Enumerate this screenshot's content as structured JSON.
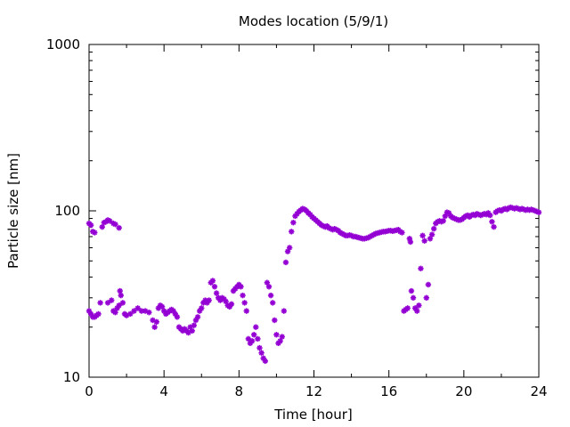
{
  "chart_data": {
    "type": "scatter",
    "title": "Modes location (5/9/1)",
    "xlabel": "Time [hour]",
    "ylabel": "Particle size [nm]",
    "xlim": [
      0,
      24
    ],
    "ylim": [
      10,
      1000
    ],
    "yscale": "log",
    "grid": false,
    "legend": "none",
    "marker": "asterisk",
    "color": "#9400d3",
    "x_ticks": [
      0,
      4,
      8,
      12,
      16,
      20,
      24
    ],
    "x_tick_labels": [
      "0",
      "4",
      "8",
      "12",
      "16",
      "20",
      "24"
    ],
    "y_ticks": [
      10,
      100,
      1000
    ],
    "y_tick_labels": [
      "10",
      "100",
      "1000"
    ],
    "series": [
      {
        "points": [
          [
            0.0,
            25
          ],
          [
            0.1,
            24
          ],
          [
            0.2,
            23
          ],
          [
            0.3,
            23
          ],
          [
            0.4,
            23.5
          ],
          [
            0.5,
            24
          ],
          [
            0.6,
            28
          ],
          [
            1.0,
            28
          ],
          [
            1.2,
            29
          ],
          [
            1.3,
            25
          ],
          [
            1.4,
            24.5
          ],
          [
            1.5,
            26
          ],
          [
            1.6,
            27
          ],
          [
            1.65,
            33
          ],
          [
            1.7,
            31
          ],
          [
            1.8,
            28
          ],
          [
            1.9,
            24
          ],
          [
            2.0,
            23.5
          ],
          [
            2.2,
            24
          ],
          [
            2.4,
            25
          ],
          [
            2.6,
            26
          ],
          [
            2.8,
            25
          ],
          [
            3.0,
            25
          ],
          [
            3.2,
            24.5
          ],
          [
            3.4,
            22
          ],
          [
            3.5,
            20
          ],
          [
            3.6,
            21.5
          ],
          [
            3.7,
            26
          ],
          [
            3.8,
            27
          ],
          [
            3.9,
            26.5
          ],
          [
            4.0,
            25
          ],
          [
            4.1,
            24
          ],
          [
            4.2,
            24.5
          ],
          [
            4.3,
            25
          ],
          [
            4.4,
            25.5
          ],
          [
            4.5,
            25
          ],
          [
            4.6,
            24
          ],
          [
            4.7,
            23
          ],
          [
            4.8,
            20
          ],
          [
            4.9,
            19.5
          ],
          [
            5.0,
            19
          ],
          [
            5.1,
            19.5
          ],
          [
            5.2,
            19
          ],
          [
            5.3,
            18.5
          ],
          [
            5.4,
            20
          ],
          [
            5.5,
            19
          ],
          [
            5.6,
            20.5
          ],
          [
            5.7,
            22
          ],
          [
            5.8,
            23
          ],
          [
            5.9,
            25
          ],
          [
            6.0,
            26
          ],
          [
            6.1,
            28
          ],
          [
            6.2,
            29
          ],
          [
            6.3,
            28
          ],
          [
            6.4,
            29
          ],
          [
            6.5,
            37
          ],
          [
            6.6,
            38
          ],
          [
            6.7,
            35
          ],
          [
            6.8,
            32
          ],
          [
            6.9,
            30
          ],
          [
            7.0,
            29
          ],
          [
            7.1,
            30
          ],
          [
            7.2,
            29.5
          ],
          [
            7.3,
            28.5
          ],
          [
            7.4,
            27
          ],
          [
            7.5,
            26.5
          ],
          [
            7.6,
            27.5
          ],
          [
            7.7,
            33
          ],
          [
            7.8,
            34
          ],
          [
            7.9,
            35
          ],
          [
            8.0,
            36
          ],
          [
            8.1,
            35
          ],
          [
            8.2,
            31
          ],
          [
            8.3,
            28
          ],
          [
            8.4,
            25
          ],
          [
            8.5,
            17
          ],
          [
            8.6,
            16
          ],
          [
            8.7,
            16.5
          ],
          [
            8.8,
            18
          ],
          [
            8.9,
            20
          ],
          [
            9.0,
            17
          ],
          [
            9.1,
            15
          ],
          [
            9.2,
            14
          ],
          [
            9.3,
            13
          ],
          [
            9.4,
            12.5
          ],
          [
            9.5,
            37
          ],
          [
            9.6,
            35
          ],
          [
            9.7,
            31
          ],
          [
            9.8,
            28
          ],
          [
            9.9,
            22
          ],
          [
            10.0,
            18
          ],
          [
            10.1,
            16
          ],
          [
            10.2,
            16.5
          ],
          [
            10.3,
            17.5
          ],
          [
            10.4,
            25
          ],
          [
            10.5,
            49
          ],
          [
            10.6,
            57
          ],
          [
            10.7,
            60
          ],
          [
            10.8,
            75
          ],
          [
            10.9,
            85
          ],
          [
            11.0,
            93
          ],
          [
            11.1,
            96
          ],
          [
            11.2,
            99
          ],
          [
            11.3,
            101
          ],
          [
            11.4,
            103
          ],
          [
            11.5,
            102
          ],
          [
            11.6,
            100
          ],
          [
            11.7,
            97
          ],
          [
            11.8,
            95
          ],
          [
            11.9,
            92
          ],
          [
            12.0,
            90
          ],
          [
            12.1,
            88
          ],
          [
            12.2,
            86
          ],
          [
            12.3,
            84
          ],
          [
            12.4,
            82
          ],
          [
            12.5,
            81
          ],
          [
            12.6,
            80
          ],
          [
            12.7,
            81
          ],
          [
            12.8,
            79
          ],
          [
            12.9,
            78
          ],
          [
            13.0,
            77
          ],
          [
            13.1,
            78
          ],
          [
            13.2,
            77
          ],
          [
            13.3,
            76
          ],
          [
            13.4,
            74
          ],
          [
            13.5,
            73
          ],
          [
            13.6,
            72
          ],
          [
            13.7,
            71
          ],
          [
            13.8,
            71
          ],
          [
            13.9,
            71.5
          ],
          [
            14.0,
            71
          ],
          [
            14.1,
            70
          ],
          [
            14.2,
            70
          ],
          [
            14.3,
            69.5
          ],
          [
            14.4,
            69
          ],
          [
            14.5,
            68.5
          ],
          [
            14.6,
            68
          ],
          [
            14.7,
            68
          ],
          [
            14.8,
            68.5
          ],
          [
            14.9,
            69
          ],
          [
            15.0,
            70
          ],
          [
            15.1,
            71
          ],
          [
            15.2,
            72
          ],
          [
            15.3,
            73
          ],
          [
            15.4,
            73.5
          ],
          [
            15.5,
            74
          ],
          [
            15.6,
            74.5
          ],
          [
            15.7,
            75
          ],
          [
            15.8,
            75
          ],
          [
            15.9,
            75.5
          ],
          [
            16.0,
            76
          ],
          [
            16.1,
            76
          ],
          [
            16.2,
            75.5
          ],
          [
            16.3,
            76
          ],
          [
            16.4,
            76.5
          ],
          [
            16.5,
            77
          ],
          [
            16.6,
            75
          ],
          [
            16.7,
            74
          ],
          [
            16.8,
            25
          ],
          [
            16.9,
            25.5
          ],
          [
            17.0,
            26
          ],
          [
            17.1,
            68
          ],
          [
            17.15,
            65
          ],
          [
            17.2,
            33
          ],
          [
            17.3,
            30
          ],
          [
            17.4,
            26
          ],
          [
            17.5,
            25
          ],
          [
            17.6,
            27
          ],
          [
            17.7,
            45
          ],
          [
            17.8,
            71
          ],
          [
            17.9,
            66
          ],
          [
            18.0,
            30
          ],
          [
            18.1,
            36
          ],
          [
            18.2,
            68
          ],
          [
            18.3,
            72
          ],
          [
            18.4,
            78
          ],
          [
            18.5,
            84
          ],
          [
            18.6,
            86
          ],
          [
            18.7,
            87
          ],
          [
            18.8,
            86
          ],
          [
            18.9,
            87
          ],
          [
            19.0,
            93
          ],
          [
            19.1,
            98
          ],
          [
            19.2,
            97
          ],
          [
            19.3,
            93
          ],
          [
            19.4,
            91
          ],
          [
            19.5,
            90
          ],
          [
            19.6,
            89
          ],
          [
            19.7,
            88
          ],
          [
            19.8,
            88
          ],
          [
            19.9,
            89
          ],
          [
            20.0,
            91
          ],
          [
            20.1,
            93
          ],
          [
            20.2,
            94
          ],
          [
            20.3,
            92
          ],
          [
            20.4,
            94
          ],
          [
            20.5,
            95
          ],
          [
            20.6,
            94
          ],
          [
            20.7,
            96
          ],
          [
            20.8,
            95
          ],
          [
            20.9,
            94
          ],
          [
            21.0,
            95
          ],
          [
            21.1,
            96
          ],
          [
            21.2,
            95
          ],
          [
            21.3,
            97
          ],
          [
            21.4,
            94
          ],
          [
            21.5,
            86
          ],
          [
            21.6,
            80
          ],
          [
            21.7,
            98
          ],
          [
            21.8,
            100
          ],
          [
            21.9,
            101
          ],
          [
            22.0,
            100
          ],
          [
            22.1,
            102
          ],
          [
            22.2,
            103
          ],
          [
            22.3,
            102
          ],
          [
            22.4,
            104
          ],
          [
            22.5,
            105
          ],
          [
            22.6,
            104
          ],
          [
            22.7,
            103
          ],
          [
            22.8,
            104
          ],
          [
            22.9,
            103
          ],
          [
            23.0,
            102
          ],
          [
            23.1,
            103
          ],
          [
            23.2,
            102
          ],
          [
            23.3,
            101
          ],
          [
            23.4,
            102
          ],
          [
            23.5,
            101
          ],
          [
            23.6,
            102
          ],
          [
            23.7,
            101
          ],
          [
            23.8,
            100
          ],
          [
            23.9,
            99
          ],
          [
            24.0,
            98
          ],
          [
            0.0,
            84
          ],
          [
            0.1,
            82
          ],
          [
            0.2,
            75
          ],
          [
            0.3,
            74
          ],
          [
            0.7,
            80
          ],
          [
            0.8,
            85
          ],
          [
            0.9,
            86
          ],
          [
            1.0,
            88
          ],
          [
            1.1,
            87
          ],
          [
            1.3,
            84
          ],
          [
            1.4,
            83
          ],
          [
            1.6,
            79
          ]
        ]
      }
    ]
  }
}
